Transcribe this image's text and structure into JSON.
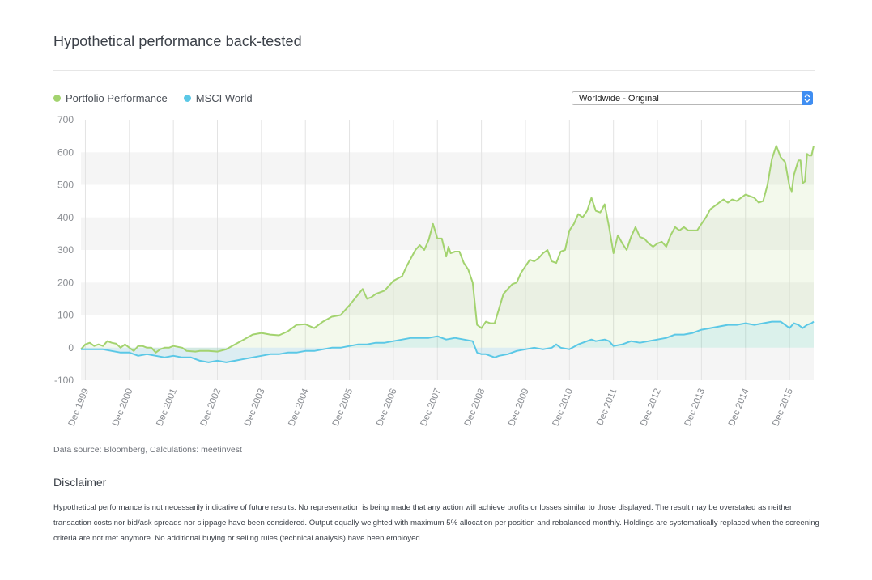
{
  "header": {
    "title": "Hypothetical performance back-tested"
  },
  "legend": [
    {
      "label": "Portfolio Performance",
      "color": "#a3d36f"
    },
    {
      "label": "MSCI World",
      "color": "#5bc8e6"
    }
  ],
  "selector": {
    "selected": "Worldwide - Original"
  },
  "chart_data": {
    "type": "line",
    "title": "",
    "xlabel": "",
    "ylabel": "",
    "ylim": [
      -100,
      700
    ],
    "yticks": [
      700,
      600,
      500,
      400,
      300,
      200,
      100,
      0,
      -100
    ],
    "xlim": [
      1999.9,
      2016.55
    ],
    "xticks": [
      {
        "label": "Dec 1999",
        "value": 2000.0
      },
      {
        "label": "Dec 2000",
        "value": 2001.0
      },
      {
        "label": "Dec 2001",
        "value": 2002.0
      },
      {
        "label": "Dec 2002",
        "value": 2003.0
      },
      {
        "label": "Dec 2003",
        "value": 2004.0
      },
      {
        "label": "Dec 2004",
        "value": 2005.0
      },
      {
        "label": "Dec 2005",
        "value": 2006.0
      },
      {
        "label": "Dec 2006",
        "value": 2007.0
      },
      {
        "label": "Dec 2007",
        "value": 2008.0
      },
      {
        "label": "Dec 2008",
        "value": 2009.0
      },
      {
        "label": "Dec 2009",
        "value": 2010.0
      },
      {
        "label": "Dec 2010",
        "value": 2011.0
      },
      {
        "label": "Dec 2011",
        "value": 2012.0
      },
      {
        "label": "Dec 2012",
        "value": 2013.0
      },
      {
        "label": "Dec 2013",
        "value": 2014.0
      },
      {
        "label": "Dec 2014",
        "value": 2015.0
      },
      {
        "label": "Dec 2015",
        "value": 2016.0
      }
    ],
    "grid": true,
    "series": [
      {
        "name": "Portfolio Performance",
        "color": "#a3d36f",
        "points": [
          [
            1999.9,
            -5
          ],
          [
            2000.0,
            10
          ],
          [
            2000.1,
            15
          ],
          [
            2000.2,
            5
          ],
          [
            2000.3,
            10
          ],
          [
            2000.4,
            5
          ],
          [
            2000.5,
            20
          ],
          [
            2000.6,
            15
          ],
          [
            2000.7,
            12
          ],
          [
            2000.8,
            0
          ],
          [
            2000.9,
            10
          ],
          [
            2001.0,
            0
          ],
          [
            2001.1,
            -10
          ],
          [
            2001.2,
            5
          ],
          [
            2001.3,
            5
          ],
          [
            2001.4,
            0
          ],
          [
            2001.5,
            0
          ],
          [
            2001.6,
            -15
          ],
          [
            2001.7,
            -5
          ],
          [
            2001.8,
            0
          ],
          [
            2001.9,
            0
          ],
          [
            2002.0,
            5
          ],
          [
            2002.2,
            0
          ],
          [
            2002.3,
            -10
          ],
          [
            2002.5,
            -12
          ],
          [
            2002.6,
            -10
          ],
          [
            2002.8,
            -10
          ],
          [
            2003.0,
            -12
          ],
          [
            2003.2,
            -5
          ],
          [
            2003.4,
            10
          ],
          [
            2003.6,
            25
          ],
          [
            2003.8,
            40
          ],
          [
            2004.0,
            45
          ],
          [
            2004.2,
            40
          ],
          [
            2004.4,
            38
          ],
          [
            2004.6,
            50
          ],
          [
            2004.8,
            70
          ],
          [
            2005.0,
            72
          ],
          [
            2005.2,
            60
          ],
          [
            2005.4,
            80
          ],
          [
            2005.6,
            95
          ],
          [
            2005.8,
            100
          ],
          [
            2006.0,
            130
          ],
          [
            2006.15,
            155
          ],
          [
            2006.3,
            180
          ],
          [
            2006.4,
            150
          ],
          [
            2006.5,
            155
          ],
          [
            2006.6,
            165
          ],
          [
            2006.8,
            175
          ],
          [
            2007.0,
            205
          ],
          [
            2007.2,
            220
          ],
          [
            2007.3,
            250
          ],
          [
            2007.5,
            300
          ],
          [
            2007.6,
            315
          ],
          [
            2007.7,
            300
          ],
          [
            2007.8,
            330
          ],
          [
            2007.9,
            380
          ],
          [
            2008.0,
            335
          ],
          [
            2008.1,
            335
          ],
          [
            2008.2,
            280
          ],
          [
            2008.25,
            310
          ],
          [
            2008.3,
            290
          ],
          [
            2008.4,
            295
          ],
          [
            2008.5,
            295
          ],
          [
            2008.6,
            260
          ],
          [
            2008.7,
            240
          ],
          [
            2008.8,
            200
          ],
          [
            2008.9,
            70
          ],
          [
            2009.0,
            60
          ],
          [
            2009.1,
            80
          ],
          [
            2009.2,
            75
          ],
          [
            2009.3,
            75
          ],
          [
            2009.4,
            120
          ],
          [
            2009.5,
            165
          ],
          [
            2009.6,
            180
          ],
          [
            2009.7,
            195
          ],
          [
            2009.8,
            200
          ],
          [
            2009.9,
            230
          ],
          [
            2010.0,
            250
          ],
          [
            2010.1,
            270
          ],
          [
            2010.2,
            265
          ],
          [
            2010.3,
            275
          ],
          [
            2010.4,
            290
          ],
          [
            2010.5,
            300
          ],
          [
            2010.6,
            265
          ],
          [
            2010.7,
            260
          ],
          [
            2010.8,
            295
          ],
          [
            2010.9,
            300
          ],
          [
            2011.0,
            360
          ],
          [
            2011.1,
            380
          ],
          [
            2011.2,
            410
          ],
          [
            2011.3,
            400
          ],
          [
            2011.4,
            420
          ],
          [
            2011.5,
            460
          ],
          [
            2011.6,
            420
          ],
          [
            2011.7,
            415
          ],
          [
            2011.8,
            440
          ],
          [
            2011.9,
            370
          ],
          [
            2012.0,
            290
          ],
          [
            2012.1,
            345
          ],
          [
            2012.2,
            320
          ],
          [
            2012.3,
            300
          ],
          [
            2012.4,
            340
          ],
          [
            2012.5,
            370
          ],
          [
            2012.6,
            340
          ],
          [
            2012.7,
            335
          ],
          [
            2012.8,
            320
          ],
          [
            2012.9,
            310
          ],
          [
            2013.0,
            320
          ],
          [
            2013.1,
            325
          ],
          [
            2013.2,
            310
          ],
          [
            2013.3,
            345
          ],
          [
            2013.4,
            370
          ],
          [
            2013.5,
            360
          ],
          [
            2013.6,
            370
          ],
          [
            2013.7,
            360
          ],
          [
            2013.8,
            360
          ],
          [
            2013.9,
            360
          ],
          [
            2014.0,
            380
          ],
          [
            2014.1,
            400
          ],
          [
            2014.2,
            425
          ],
          [
            2014.3,
            435
          ],
          [
            2014.4,
            445
          ],
          [
            2014.5,
            455
          ],
          [
            2014.6,
            445
          ],
          [
            2014.7,
            455
          ],
          [
            2014.8,
            450
          ],
          [
            2014.9,
            460
          ],
          [
            2015.0,
            470
          ],
          [
            2015.1,
            465
          ],
          [
            2015.2,
            460
          ],
          [
            2015.3,
            445
          ],
          [
            2015.4,
            450
          ],
          [
            2015.5,
            500
          ],
          [
            2015.6,
            580
          ],
          [
            2015.7,
            620
          ],
          [
            2015.8,
            585
          ],
          [
            2015.9,
            570
          ],
          [
            2016.0,
            495
          ],
          [
            2016.05,
            480
          ],
          [
            2016.1,
            530
          ],
          [
            2016.2,
            575
          ],
          [
            2016.25,
            575
          ],
          [
            2016.3,
            505
          ],
          [
            2016.35,
            510
          ],
          [
            2016.4,
            595
          ],
          [
            2016.45,
            590
          ],
          [
            2016.5,
            590
          ],
          [
            2016.55,
            620
          ]
        ]
      },
      {
        "name": "MSCI World",
        "color": "#5bc8e6",
        "points": [
          [
            1999.9,
            -5
          ],
          [
            2000.0,
            -5
          ],
          [
            2000.2,
            -5
          ],
          [
            2000.4,
            -5
          ],
          [
            2000.6,
            -10
          ],
          [
            2000.8,
            -15
          ],
          [
            2001.0,
            -15
          ],
          [
            2001.2,
            -25
          ],
          [
            2001.4,
            -20
          ],
          [
            2001.6,
            -25
          ],
          [
            2001.8,
            -30
          ],
          [
            2002.0,
            -25
          ],
          [
            2002.2,
            -30
          ],
          [
            2002.4,
            -30
          ],
          [
            2002.6,
            -40
          ],
          [
            2002.8,
            -45
          ],
          [
            2003.0,
            -40
          ],
          [
            2003.2,
            -45
          ],
          [
            2003.4,
            -40
          ],
          [
            2003.6,
            -35
          ],
          [
            2003.8,
            -30
          ],
          [
            2004.0,
            -25
          ],
          [
            2004.2,
            -20
          ],
          [
            2004.4,
            -20
          ],
          [
            2004.6,
            -15
          ],
          [
            2004.8,
            -15
          ],
          [
            2005.0,
            -10
          ],
          [
            2005.2,
            -10
          ],
          [
            2005.4,
            -5
          ],
          [
            2005.6,
            0
          ],
          [
            2005.8,
            0
          ],
          [
            2006.0,
            5
          ],
          [
            2006.2,
            10
          ],
          [
            2006.4,
            10
          ],
          [
            2006.6,
            15
          ],
          [
            2006.8,
            15
          ],
          [
            2007.0,
            20
          ],
          [
            2007.2,
            25
          ],
          [
            2007.4,
            30
          ],
          [
            2007.6,
            30
          ],
          [
            2007.8,
            30
          ],
          [
            2008.0,
            35
          ],
          [
            2008.1,
            30
          ],
          [
            2008.2,
            25
          ],
          [
            2008.4,
            30
          ],
          [
            2008.6,
            25
          ],
          [
            2008.8,
            20
          ],
          [
            2008.9,
            -15
          ],
          [
            2009.0,
            -20
          ],
          [
            2009.1,
            -20
          ],
          [
            2009.2,
            -25
          ],
          [
            2009.3,
            -30
          ],
          [
            2009.4,
            -25
          ],
          [
            2009.6,
            -20
          ],
          [
            2009.8,
            -10
          ],
          [
            2010.0,
            -5
          ],
          [
            2010.2,
            0
          ],
          [
            2010.4,
            -5
          ],
          [
            2010.6,
            0
          ],
          [
            2010.7,
            10
          ],
          [
            2010.8,
            0
          ],
          [
            2011.0,
            -5
          ],
          [
            2011.2,
            10
          ],
          [
            2011.4,
            20
          ],
          [
            2011.5,
            25
          ],
          [
            2011.6,
            20
          ],
          [
            2011.8,
            25
          ],
          [
            2011.9,
            20
          ],
          [
            2012.0,
            5
          ],
          [
            2012.2,
            10
          ],
          [
            2012.4,
            20
          ],
          [
            2012.6,
            15
          ],
          [
            2012.8,
            20
          ],
          [
            2013.0,
            25
          ],
          [
            2013.2,
            30
          ],
          [
            2013.4,
            40
          ],
          [
            2013.6,
            40
          ],
          [
            2013.8,
            45
          ],
          [
            2014.0,
            55
          ],
          [
            2014.2,
            60
          ],
          [
            2014.4,
            65
          ],
          [
            2014.6,
            70
          ],
          [
            2014.8,
            70
          ],
          [
            2015.0,
            75
          ],
          [
            2015.2,
            70
          ],
          [
            2015.4,
            75
          ],
          [
            2015.6,
            80
          ],
          [
            2015.8,
            80
          ],
          [
            2016.0,
            60
          ],
          [
            2016.1,
            75
          ],
          [
            2016.2,
            70
          ],
          [
            2016.3,
            60
          ],
          [
            2016.4,
            70
          ],
          [
            2016.5,
            75
          ],
          [
            2016.55,
            80
          ]
        ]
      }
    ]
  },
  "footer": {
    "source": "Data source: Bloomberg, Calculations: meetinvest",
    "disclaimer_title": "Disclaimer",
    "disclaimer_text": "Hypothetical performance is not necessarily indicative of future results. No representation is being made that any action will achieve profits or losses similar to those displayed. The result may be overstated as neither transaction costs nor bid/ask spreads nor slippage have been considered. Output equally weighted with maximum 5% allocation per position and rebalanced monthly. Holdings are systematically replaced when the screening criteria are not met anymore. No additional buying or selling rules (technical analysis) have been employed."
  }
}
